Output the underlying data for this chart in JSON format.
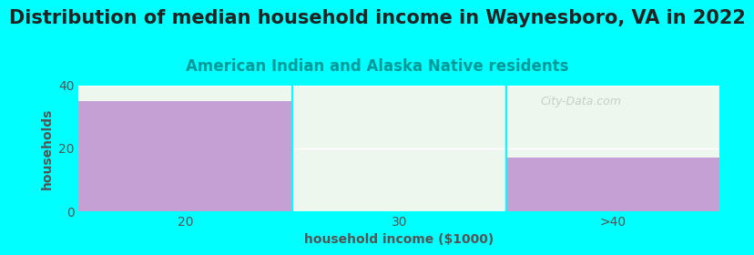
{
  "title": "Distribution of median household income in Waynesboro, VA in 2022",
  "subtitle": "American Indian and Alaska Native residents",
  "categories": [
    "20",
    "30",
    ">40"
  ],
  "values": [
    35,
    0,
    17
  ],
  "bar_colors": [
    "#c4a0d4",
    "#d8eed8",
    "#c4a0d4"
  ],
  "background_color": "#00ffff",
  "plot_bg_color": "#eef7ee",
  "xlabel": "household income ($1000)",
  "ylabel": "households",
  "ylim": [
    0,
    40
  ],
  "yticks": [
    0,
    20,
    40
  ],
  "title_fontsize": 15,
  "subtitle_fontsize": 12,
  "label_fontsize": 10,
  "tick_fontsize": 10,
  "title_color": "#222222",
  "subtitle_color": "#009999",
  "label_color": "#555555",
  "watermark": "City-Data.com",
  "grid_color": "#ffffff"
}
